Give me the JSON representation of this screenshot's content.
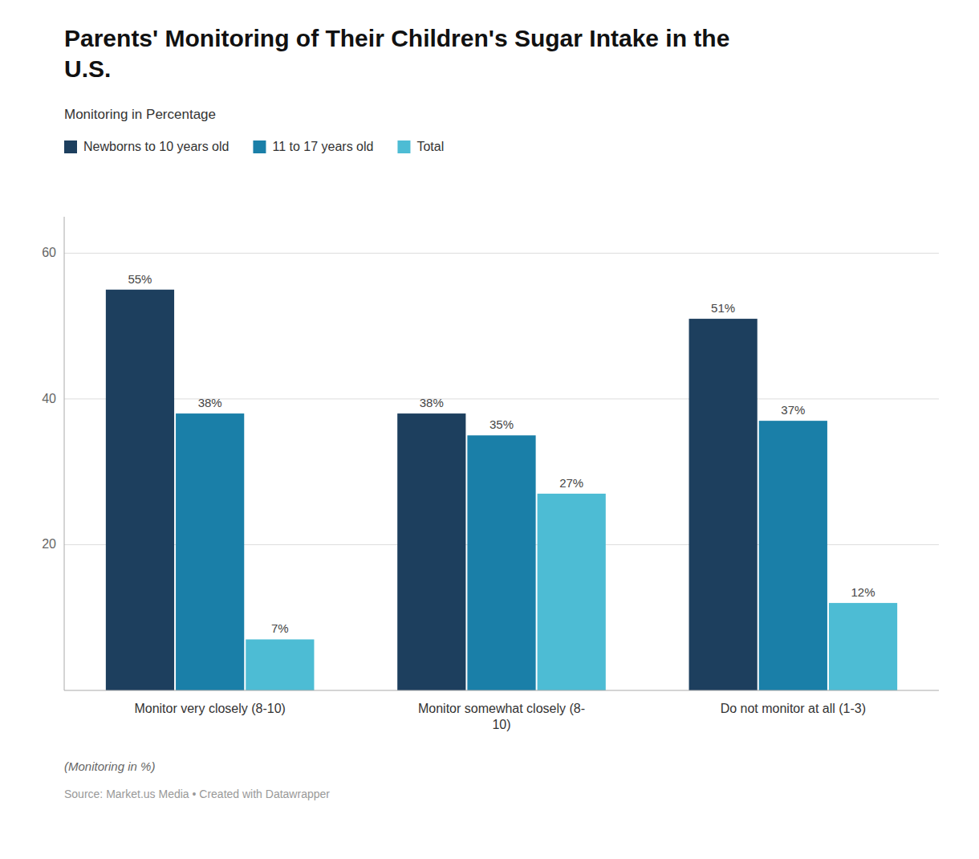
{
  "chart_data": {
    "type": "bar",
    "title": "Parents' Monitoring of Their Children's Sugar Intake in the\nU.S.",
    "subtitle": "Monitoring in Percentage",
    "categories": [
      "Monitor very closely (8-10)",
      "Monitor somewhat closely (8-\n10)",
      "Do not monitor at all (1-3)"
    ],
    "series": [
      {
        "name": "Newborns to 10 years old",
        "color": "#1d3f5e",
        "values": [
          55,
          38,
          51
        ],
        "value_labels": [
          "55%",
          "38%",
          "51%"
        ]
      },
      {
        "name": "11 to 17 years old",
        "color": "#1a7fa8",
        "values": [
          38,
          35,
          37
        ],
        "value_labels": [
          "38%",
          "35%",
          "37%"
        ]
      },
      {
        "name": "Total",
        "color": "#4dbcd4",
        "values": [
          7,
          27,
          12
        ],
        "value_labels": [
          "7%",
          "27%",
          "12%"
        ]
      }
    ],
    "ylim": [
      0,
      65
    ],
    "yticks": [
      20,
      40,
      60
    ],
    "grid": true,
    "legend": "top-left",
    "data_labels": true,
    "annotations": [
      "(Monitoring in %)",
      "Source: Market.us Media • Created with Datawrapper"
    ]
  }
}
